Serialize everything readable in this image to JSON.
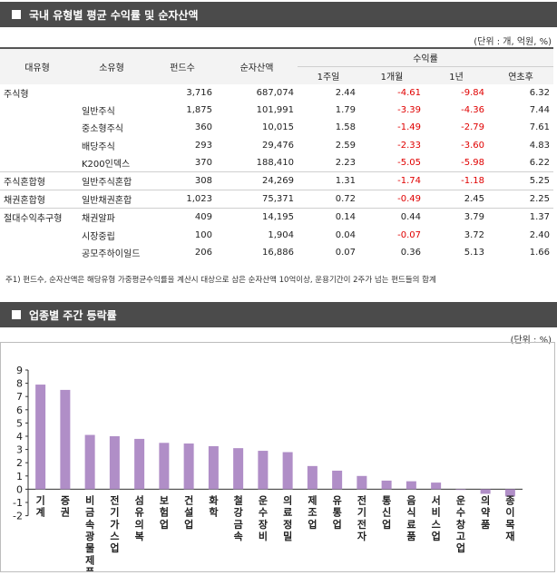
{
  "section1": {
    "title": "국내 유형별 평균 수익률 및 순자산액",
    "unit": "(단위 : 개, 억원, %)"
  },
  "table": {
    "headers": {
      "type": "대유형",
      "subtype": "소유형",
      "funds": "펀드수",
      "nav": "순자산액",
      "returns": "수익률",
      "w1": "1주일",
      "m1": "1개월",
      "y1": "1년",
      "ytd": "연초후"
    },
    "rows": [
      {
        "type": "주식형",
        "subtype": "",
        "funds": "3,716",
        "nav": "687,074",
        "w1": "2.44",
        "m1": "-4.61",
        "y1": "-9.84",
        "ytd": "6.32"
      },
      {
        "type": "",
        "subtype": "일반주식",
        "funds": "1,875",
        "nav": "101,991",
        "w1": "1.79",
        "m1": "-3.39",
        "y1": "-4.36",
        "ytd": "7.44"
      },
      {
        "type": "",
        "subtype": "중소형주식",
        "funds": "360",
        "nav": "10,015",
        "w1": "1.58",
        "m1": "-1.49",
        "y1": "-2.79",
        "ytd": "7.61"
      },
      {
        "type": "",
        "subtype": "배당주식",
        "funds": "293",
        "nav": "29,476",
        "w1": "2.59",
        "m1": "-2.33",
        "y1": "-3.60",
        "ytd": "4.83"
      },
      {
        "type": "",
        "subtype": "K200인덱스",
        "funds": "370",
        "nav": "188,410",
        "w1": "2.23",
        "m1": "-5.05",
        "y1": "-5.98",
        "ytd": "6.22"
      },
      {
        "type": "주식혼합형",
        "subtype": "일반주식혼합",
        "funds": "308",
        "nav": "24,269",
        "w1": "1.31",
        "m1": "-1.74",
        "y1": "-1.18",
        "ytd": "5.25"
      },
      {
        "type": "채권혼합형",
        "subtype": "일반채권혼합",
        "funds": "1,023",
        "nav": "75,371",
        "w1": "0.72",
        "m1": "-0.49",
        "y1": "2.45",
        "ytd": "2.25"
      },
      {
        "type": "절대수익추구형",
        "subtype": "채권알파",
        "funds": "409",
        "nav": "14,195",
        "w1": "0.14",
        "m1": "0.44",
        "y1": "3.79",
        "ytd": "1.37"
      },
      {
        "type": "",
        "subtype": "시장중립",
        "funds": "100",
        "nav": "1,904",
        "w1": "0.04",
        "m1": "-0.07",
        "y1": "3.72",
        "ytd": "2.40"
      },
      {
        "type": "",
        "subtype": "공모주하이일드",
        "funds": "206",
        "nav": "16,886",
        "w1": "0.07",
        "m1": "0.36",
        "y1": "5.13",
        "ytd": "1.66"
      }
    ],
    "note": "주1) 펀드수, 순자산액은 해당유형 가중평균수익률을 계산시 대상으로 삼은 순자산액 10억이상, 운용기간이 2주가 넘는 펀드들의 합계"
  },
  "section2": {
    "title": "업종별 주간 등락률",
    "unit": "(단위 : %)"
  },
  "colors": {
    "bar": "#b08ec7",
    "negative_text": "#e00000",
    "header_bar": "#4b4b4b"
  },
  "chart_data": {
    "type": "bar",
    "categories": [
      "기계",
      "증권",
      "비금속광물제품",
      "전기가스업",
      "섬유의복",
      "보험업",
      "건설업",
      "화학",
      "철강금속",
      "운수장비",
      "의료정밀",
      "제조업",
      "유통업",
      "전기전자",
      "통신업",
      "음식료품",
      "서비스업",
      "운수창고업",
      "의약품",
      "종이목재"
    ],
    "values": [
      7.9,
      7.5,
      4.1,
      4.0,
      3.8,
      3.5,
      3.45,
      3.25,
      3.1,
      2.9,
      2.8,
      1.75,
      1.4,
      1.0,
      0.65,
      0.6,
      0.5,
      -0.05,
      -0.35,
      -0.55
    ],
    "ylim": [
      -2,
      9
    ],
    "yticks": [
      -2,
      -1,
      0,
      1,
      2,
      3,
      4,
      5,
      6,
      7,
      8,
      9
    ]
  }
}
